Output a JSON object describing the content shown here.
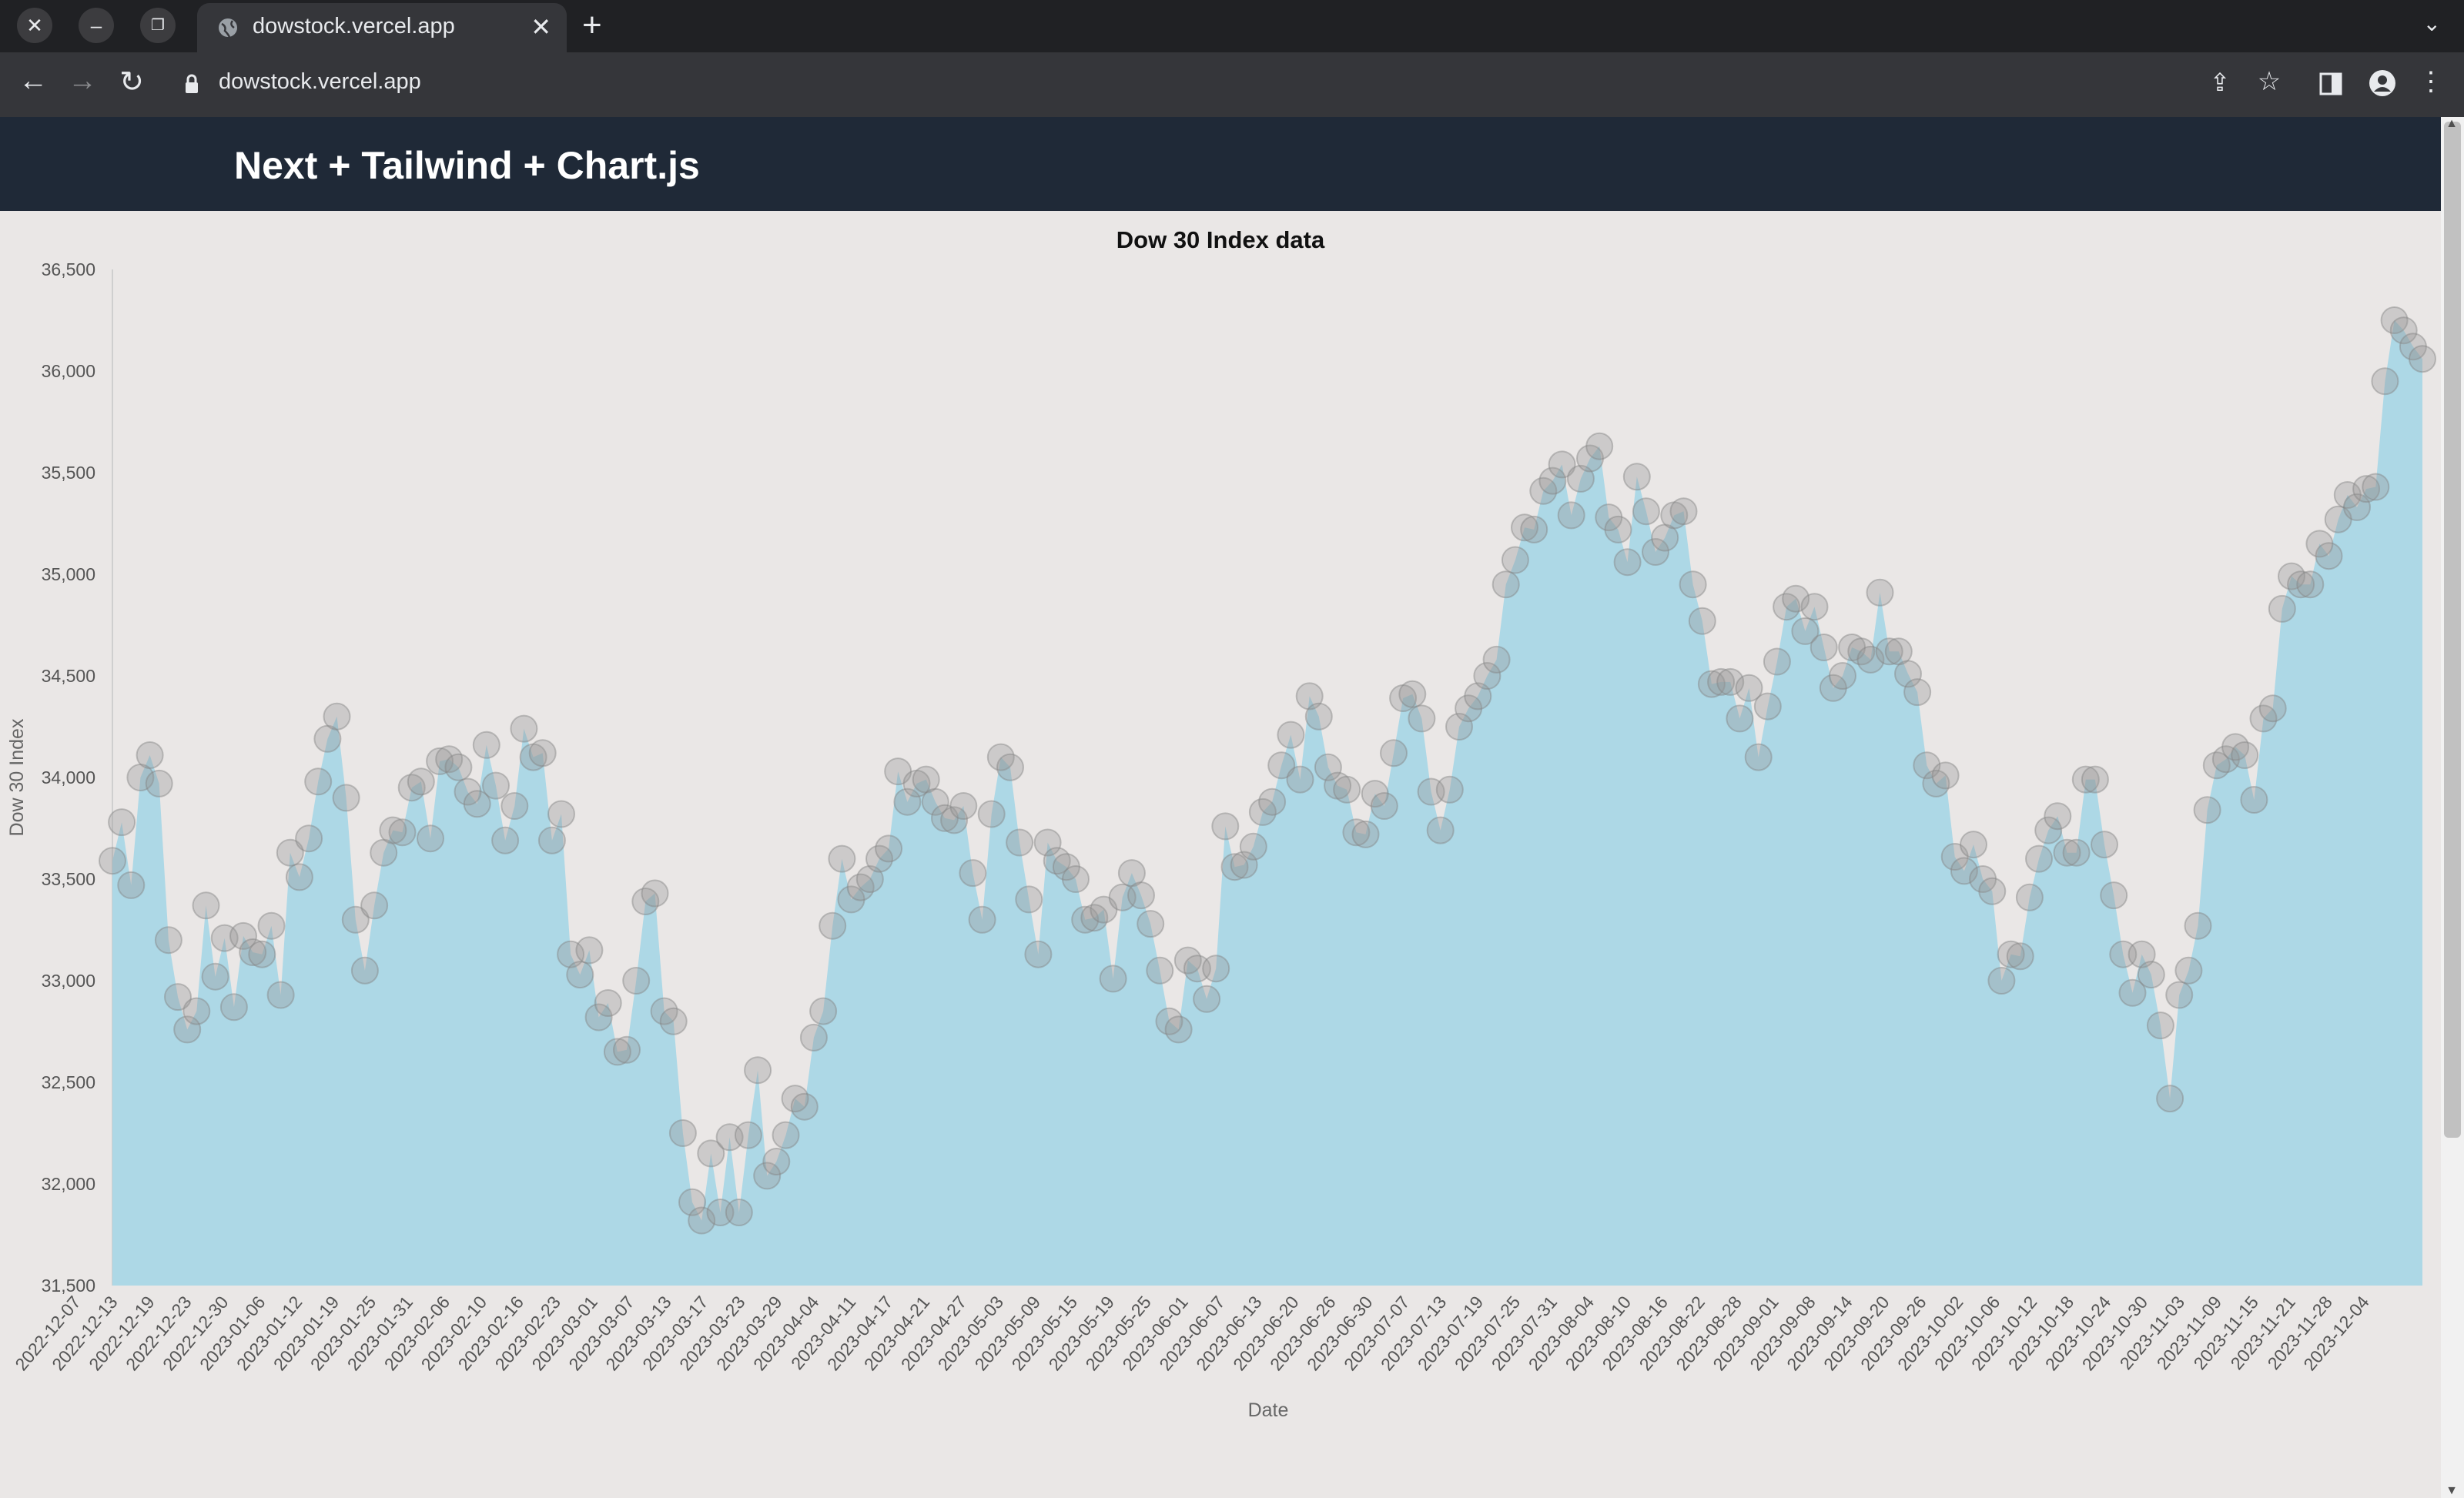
{
  "browser": {
    "tab_title": "dowstock.vercel.app",
    "url": "dowstock.vercel.app",
    "icons": [
      "close-icon",
      "minimize-icon",
      "restore-icon",
      "globe-icon",
      "tab-close-icon",
      "new-tab-icon",
      "tab-menu-icon",
      "back-icon",
      "forward-icon",
      "reload-icon",
      "lock-icon",
      "share-icon",
      "star-icon",
      "side-panel-icon",
      "profile-icon",
      "menu-icon"
    ]
  },
  "header": {
    "title": "Next + Tailwind + Chart.js"
  },
  "chart_data": {
    "type": "line",
    "title": "Dow 30 Index data",
    "xlabel": "Date",
    "ylabel": "Dow 30 Index",
    "ylim": [
      31500,
      36500
    ],
    "yticks": [
      "31,500",
      "32,000",
      "32,500",
      "33,000",
      "33,500",
      "34,000",
      "34,500",
      "35,000",
      "35,500",
      "36,000",
      "36,500"
    ],
    "xticks": [
      "2022-12-07",
      "2022-12-13",
      "2022-12-19",
      "2022-12-23",
      "2022-12-30",
      "2023-01-06",
      "2023-01-12",
      "2023-01-19",
      "2023-01-25",
      "2023-01-31",
      "2023-02-06",
      "2023-02-10",
      "2023-02-16",
      "2023-02-23",
      "2023-03-01",
      "2023-03-07",
      "2023-03-13",
      "2023-03-17",
      "2023-03-23",
      "2023-03-29",
      "2023-04-04",
      "2023-04-11",
      "2023-04-17",
      "2023-04-21",
      "2023-04-27",
      "2023-05-03",
      "2023-05-09",
      "2023-05-15",
      "2023-05-19",
      "2023-05-25",
      "2023-06-01",
      "2023-06-07",
      "2023-06-13",
      "2023-06-20",
      "2023-06-26",
      "2023-06-30",
      "2023-07-07",
      "2023-07-13",
      "2023-07-19",
      "2023-07-25",
      "2023-07-31",
      "2023-08-04",
      "2023-08-10",
      "2023-08-16",
      "2023-08-22",
      "2023-08-28",
      "2023-09-01",
      "2023-09-08",
      "2023-09-14",
      "2023-09-20",
      "2023-09-26",
      "2023-10-02",
      "2023-10-06",
      "2023-10-12",
      "2023-10-18",
      "2023-10-24",
      "2023-10-30",
      "2023-11-03",
      "2023-11-09",
      "2023-11-15",
      "2023-11-21",
      "2023-11-28",
      "2023-12-04"
    ],
    "colors": {
      "fill": "#add8e6",
      "point": "rgba(150,150,150,0.35)"
    },
    "grid": false,
    "legend": "none",
    "series": [
      {
        "values": [
          33590,
          33780,
          33470,
          34000,
          34110,
          33970,
          33200,
          32920,
          32760,
          32850,
          33370,
          33020,
          33210,
          32870,
          33220,
          33140,
          33130,
          33270,
          32930,
          33630,
          33510,
          33700,
          33980,
          34190,
          34300,
          33900,
          33300,
          33050,
          33370,
          33630,
          33740,
          33730,
          33950,
          33980,
          33700,
          34080,
          34090,
          34050,
          33930,
          33870,
          34160,
          33960,
          33690,
          33860,
          34240,
          34100,
          34120,
          33690,
          33820,
          33130,
          33030,
          33150,
          32820,
          32890,
          32650,
          32660,
          33000,
          33390,
          33430,
          32850,
          32800,
          32250,
          31910,
          31820,
          32150,
          31860,
          32230,
          31860,
          32240,
          32560,
          32040,
          32110,
          32240,
          32420,
          32380,
          32720,
          32850,
          33270,
          33600,
          33400,
          33460,
          33500,
          33600,
          33650,
          34030,
          33880,
          33970,
          33990,
          33880,
          33800,
          33790,
          33860,
          33530,
          33300,
          33820,
          34100,
          34050,
          33680,
          33400,
          33130,
          33680,
          33590,
          33560,
          33500,
          33300,
          33310,
          33350,
          33010,
          33410,
          33530,
          33420,
          33280,
          33050,
          32800,
          32760,
          33100,
          33060,
          32910,
          33060,
          33760,
          33560,
          33570,
          33660,
          33830,
          33880,
          34060,
          34210,
          33990,
          34400,
          34300,
          34050,
          33960,
          33940,
          33730,
          33720,
          33920,
          33860,
          34120,
          34390,
          34410,
          34290,
          33930,
          33740,
          33940,
          34250,
          34340,
          34400,
          34500,
          34580,
          34950,
          35070,
          35230,
          35220,
          35410,
          35460,
          35540,
          35290,
          35470,
          35570,
          35630,
          35280,
          35220,
          35060,
          35480,
          35310,
          35110,
          35180,
          35290,
          35310,
          34950,
          34770,
          34460,
          34470,
          34470,
          34290,
          34440,
          34100,
          34350,
          34570,
          34840,
          34880,
          34720,
          34840,
          34640,
          34440,
          34500,
          34640,
          34620,
          34580,
          34910,
          34620,
          34620,
          34510,
          34420,
          34060,
          33970,
          34010,
          33610,
          33540,
          33670,
          33500,
          33440,
          33000,
          33130,
          33120,
          33410,
          33600,
          33740,
          33810,
          33630,
          33630,
          33990,
          33990,
          33670,
          33420,
          33130,
          32940,
          33130,
          33030,
          32780,
          32420,
          32930,
          33050,
          33270,
          33840,
          34060,
          34090,
          34150,
          34110,
          33890,
          34290,
          34340,
          34830,
          34990,
          34950,
          34950,
          35150,
          35090,
          35270,
          35390,
          35330,
          35420,
          35430,
          35950,
          36250,
          36200,
          36120,
          36060
        ]
      }
    ]
  }
}
